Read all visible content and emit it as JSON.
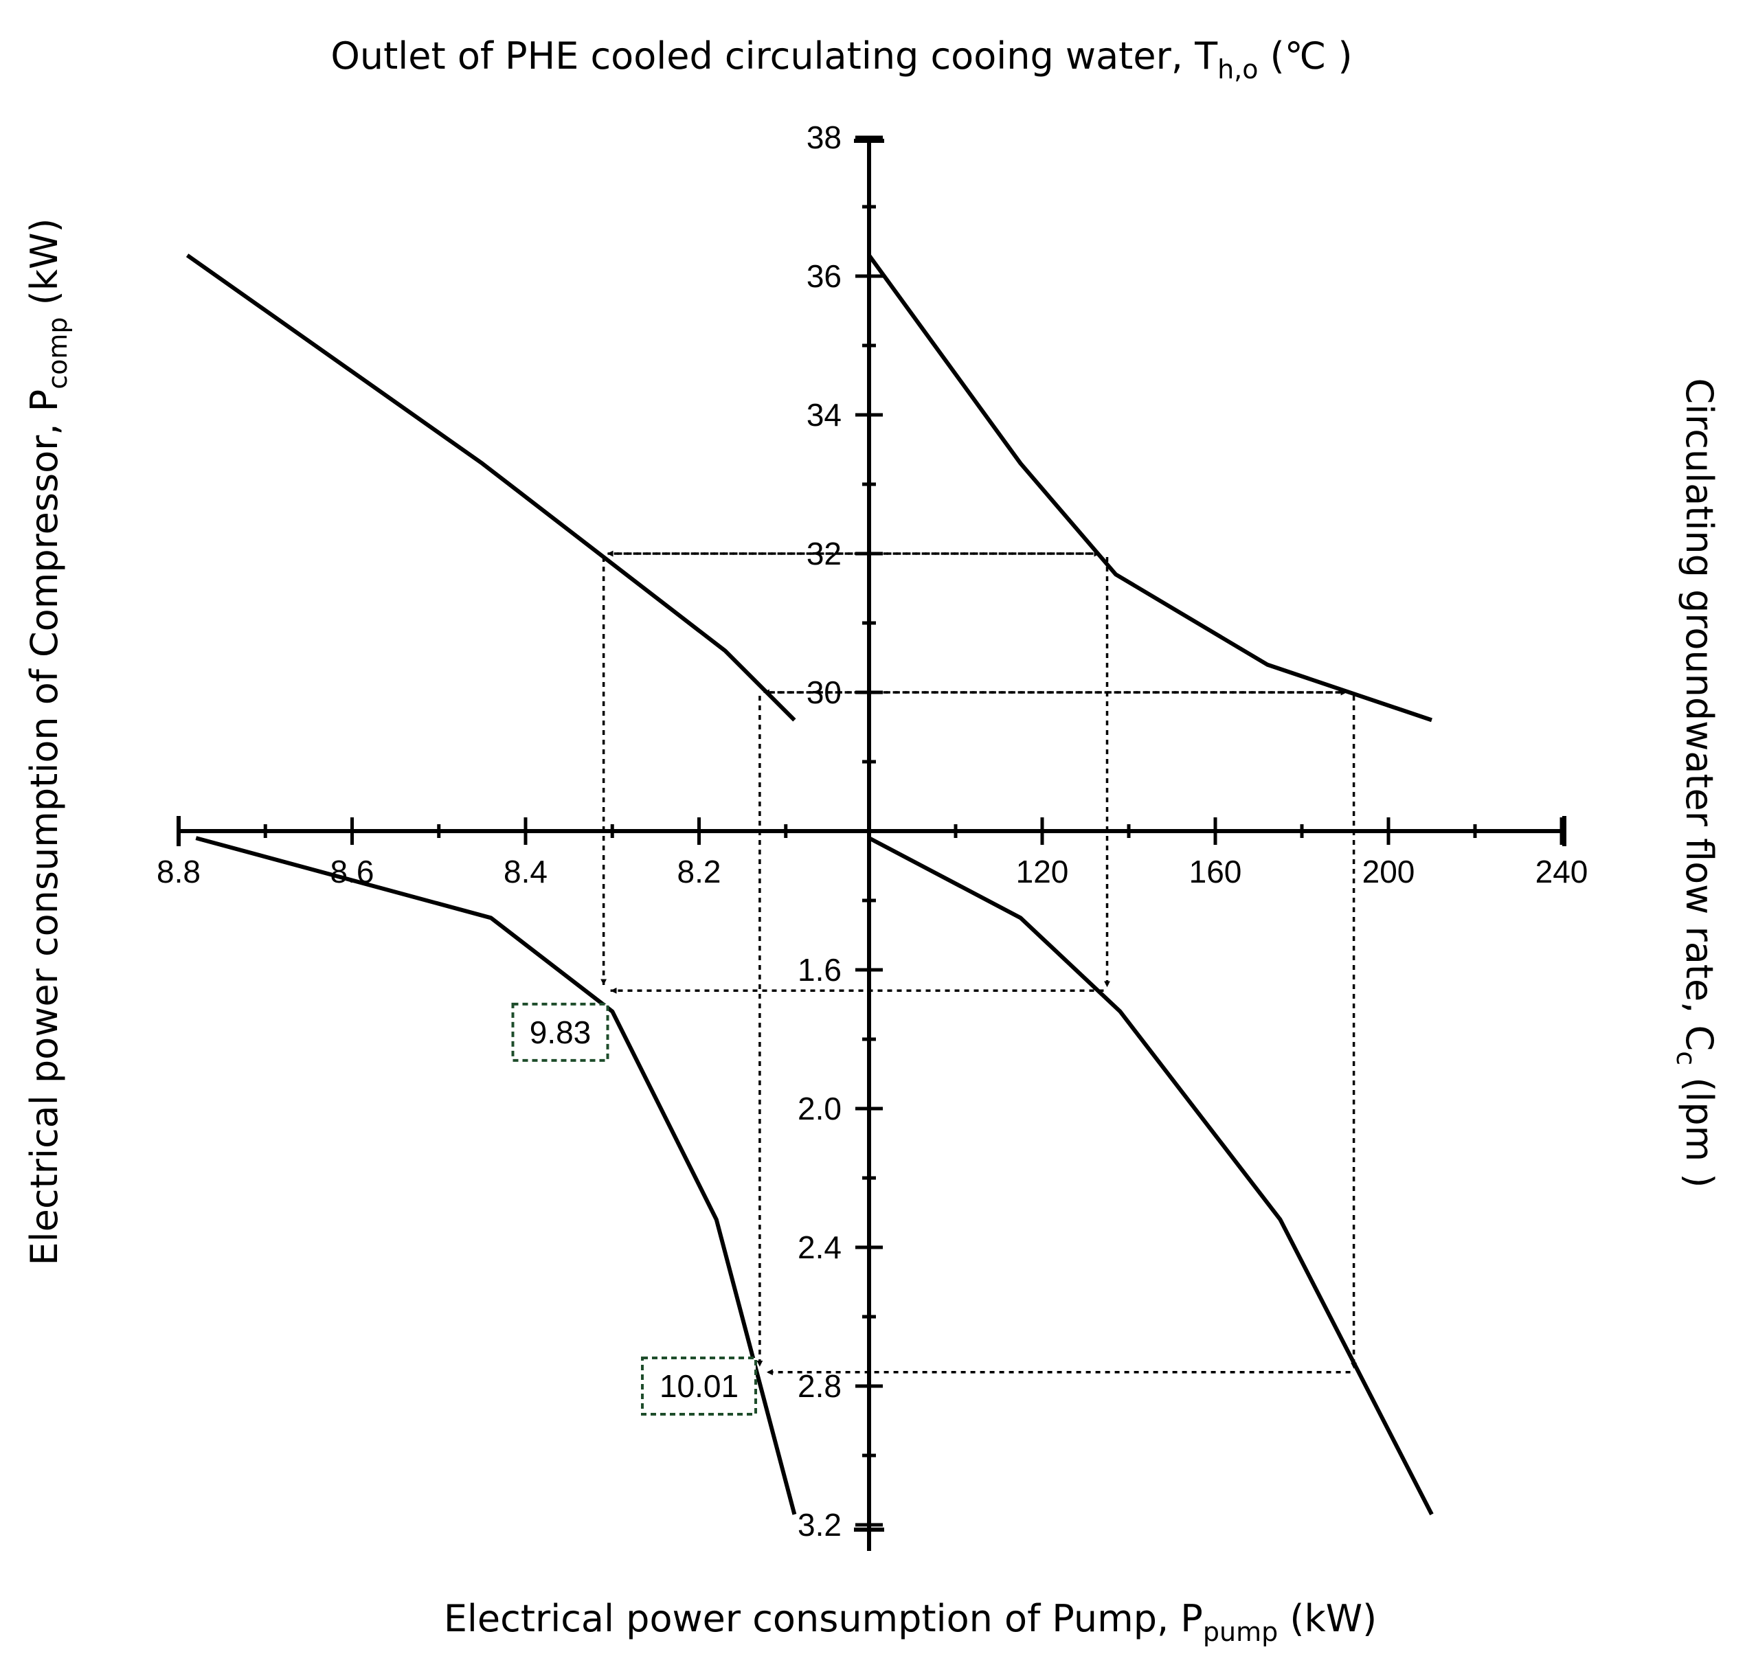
{
  "chart_data": {
    "type": "line",
    "titles": {
      "top": {
        "main": "Outlet of PHE cooled circulating cooing water, T",
        "sub": "h,o",
        "tail": " (℃ )"
      },
      "bottom": {
        "main": "Electrical power consumption of Pump, P",
        "sub": "pump",
        "tail": " (kW)"
      },
      "left": {
        "main": "Electrical power consumption of Compressor, P",
        "sub": "comp",
        "tail": " (kW)"
      },
      "right": {
        "main": "Circulating groundwater flow rate, C",
        "sub": "c",
        "tail": " (lpm )"
      }
    },
    "axes": {
      "temperature_up": {
        "range": [
          28,
          38
        ],
        "tick_labels": [
          "30",
          "32",
          "34",
          "36",
          "38"
        ]
      },
      "pump_down": {
        "range": [
          1.2,
          3.2
        ],
        "tick_labels": [
          "1.6",
          "2.0",
          "2.4",
          "2.8",
          "3.2"
        ]
      },
      "flow_right": {
        "range": [
          80,
          240
        ],
        "tick_labels": [
          "120",
          "160",
          "200",
          "240"
        ]
      },
      "compressor_left": {
        "range": [
          8.0,
          8.8
        ],
        "tick_labels": [
          "8.2",
          "8.4",
          "8.6",
          "8.8"
        ]
      }
    },
    "series": [
      {
        "name": "T_h,o vs C_c",
        "quadrant": "top-right",
        "points": [
          [
            80,
            36.3
          ],
          [
            115,
            33.3
          ],
          [
            137,
            31.7
          ],
          [
            172,
            30.4
          ],
          [
            210,
            29.6
          ]
        ]
      },
      {
        "name": "P_comp vs T_h,o",
        "quadrant": "top-left",
        "points": [
          [
            8.79,
            36.3
          ],
          [
            8.45,
            33.3
          ],
          [
            8.17,
            30.6
          ],
          [
            8.09,
            29.6
          ]
        ]
      },
      {
        "name": "P_pump vs C_c",
        "quadrant": "bottom-right",
        "points": [
          [
            80,
            1.22
          ],
          [
            115,
            1.45
          ],
          [
            138,
            1.72
          ],
          [
            175,
            2.32
          ],
          [
            210,
            3.17
          ]
        ]
      },
      {
        "name": "P_comp vs P_pump",
        "quadrant": "bottom-left",
        "points": [
          [
            8.78,
            1.22
          ],
          [
            8.44,
            1.45
          ],
          [
            8.3,
            1.72
          ],
          [
            8.18,
            2.32
          ],
          [
            8.09,
            3.17
          ]
        ]
      }
    ],
    "guides": [
      {
        "flow": 135,
        "temp": 32,
        "comp": 8.31,
        "pump": 1.66
      },
      {
        "flow": 192,
        "temp": 30,
        "comp": 8.13,
        "pump": 2.76
      }
    ],
    "annotations": [
      {
        "text": "9.83",
        "comp": 8.36,
        "pump": 1.78
      },
      {
        "text": "10.01",
        "comp": 8.2,
        "pump": 2.8
      }
    ]
  }
}
